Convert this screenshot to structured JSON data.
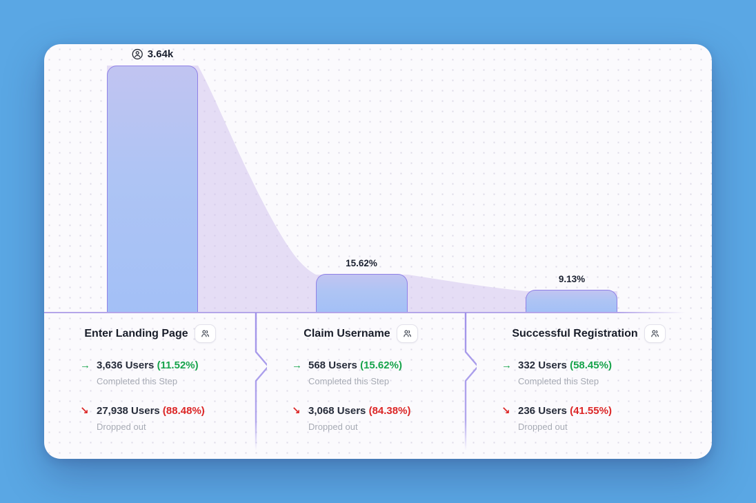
{
  "colors": {
    "accent_purple": "#8f80e6",
    "bar_fill": "#aec4f4",
    "flow_fill": "#cfc0ee",
    "completed_green": "#16a34a",
    "dropped_red": "#dc2626",
    "text_dark": "#262c3a",
    "text_gray": "#a6aab4",
    "card_bg": "#fbfafd"
  },
  "chart_data": {
    "type": "bar",
    "subtype": "funnel",
    "title": "",
    "categories": [
      "Enter Landing Page",
      "Claim Username",
      "Successful Registration"
    ],
    "series": [
      {
        "name": "Users completing step",
        "values": [
          3636,
          568,
          332
        ]
      },
      {
        "name": "Users dropped out",
        "values": [
          27938,
          3068,
          236
        ]
      }
    ],
    "bar_top_labels": [
      "3.64k",
      "15.62%",
      "9.13%"
    ],
    "pct_of_first_step": [
      100,
      15.62,
      9.13
    ],
    "conversion_from_previous_pct": [
      11.52,
      15.62,
      58.45
    ],
    "dropoff_from_previous_pct": [
      88.48,
      84.38,
      41.55
    ],
    "legend_position": "none",
    "grid": "dot-pattern-background"
  },
  "funnel": {
    "steps": [
      {
        "title": "Enter Landing Page",
        "bar_label": "3.64k",
        "completed_arrow": "→",
        "completed_users": "3,636 Users",
        "completed_pct": "(11.52%)",
        "completed_label": "Completed this Step",
        "dropped_arrow": "↘",
        "dropped_users": "27,938 Users",
        "dropped_pct": "(88.48%)",
        "dropped_label": "Dropped out"
      },
      {
        "title": "Claim Username",
        "bar_label": "15.62%",
        "completed_arrow": "→",
        "completed_users": "568 Users",
        "completed_pct": "(15.62%)",
        "completed_label": "Completed this Step",
        "dropped_arrow": "↘",
        "dropped_users": "3,068 Users",
        "dropped_pct": "(84.38%)",
        "dropped_label": "Dropped out"
      },
      {
        "title": "Successful Registration",
        "bar_label": "9.13%",
        "completed_arrow": "→",
        "completed_users": "332 Users",
        "completed_pct": "(58.45%)",
        "completed_label": "Completed this Step",
        "dropped_arrow": "↘",
        "dropped_users": "236 Users",
        "dropped_pct": "(41.55%)",
        "dropped_label": "Dropped out"
      }
    ]
  }
}
